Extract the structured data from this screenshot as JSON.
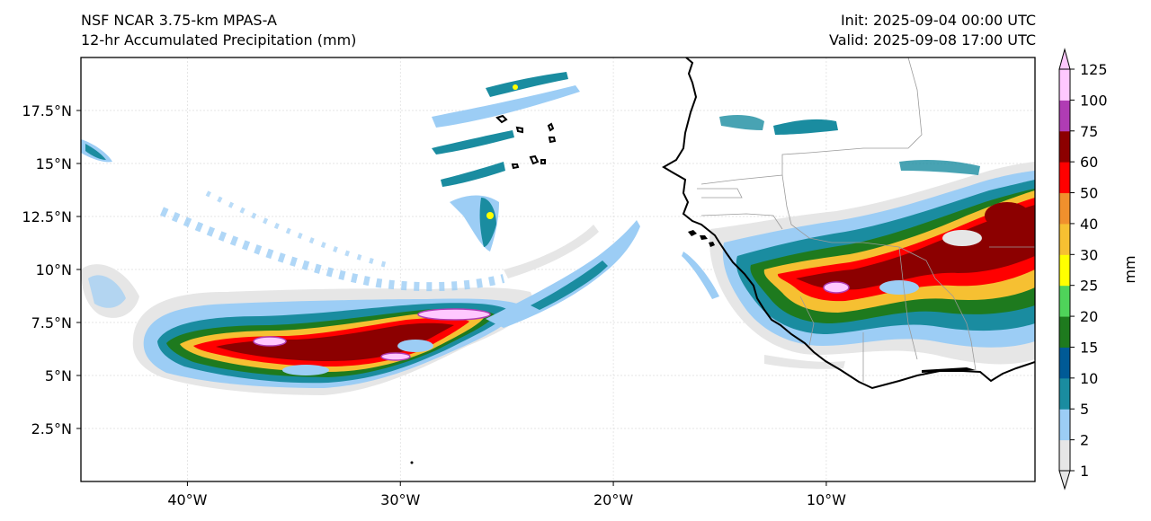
{
  "header": {
    "model": "NSF NCAR 3.75-km MPAS-A",
    "field": "12-hr Accumulated Precipitation (mm)",
    "init": "Init: 2025-09-04 00:00 UTC",
    "valid": "Valid: 2025-09-08 17:00 UTC"
  },
  "axes": {
    "lat_ticks": [
      "17.5°N",
      "15°N",
      "12.5°N",
      "10°N",
      "7.5°N",
      "5°N",
      "2.5°N"
    ],
    "lon_ticks": [
      "40°W",
      "30°W",
      "20°W",
      "10°W"
    ],
    "lat_values": [
      17.5,
      15,
      12.5,
      10,
      7.5,
      5,
      2.5
    ],
    "lon_values": [
      -40,
      -30,
      -20,
      -10
    ],
    "lon_range": [
      -45,
      -0.2
    ],
    "lat_range": [
      0,
      20
    ],
    "grid": true
  },
  "colorbar": {
    "unit": "mm",
    "levels": [
      "1",
      "2",
      "5",
      "10",
      "15",
      "20",
      "25",
      "30",
      "40",
      "50",
      "60",
      "75",
      "100",
      "125"
    ],
    "colors": [
      "#e6e6e6",
      "#9ccdf5",
      "#1a8ca0",
      "#005a96",
      "#1e7a1e",
      "#4fd35a",
      "#ffff00",
      "#f6c032",
      "#f0902d",
      "#ff0000",
      "#8c0000",
      "#b03cb4",
      "#ffc8ff"
    ]
  }
}
